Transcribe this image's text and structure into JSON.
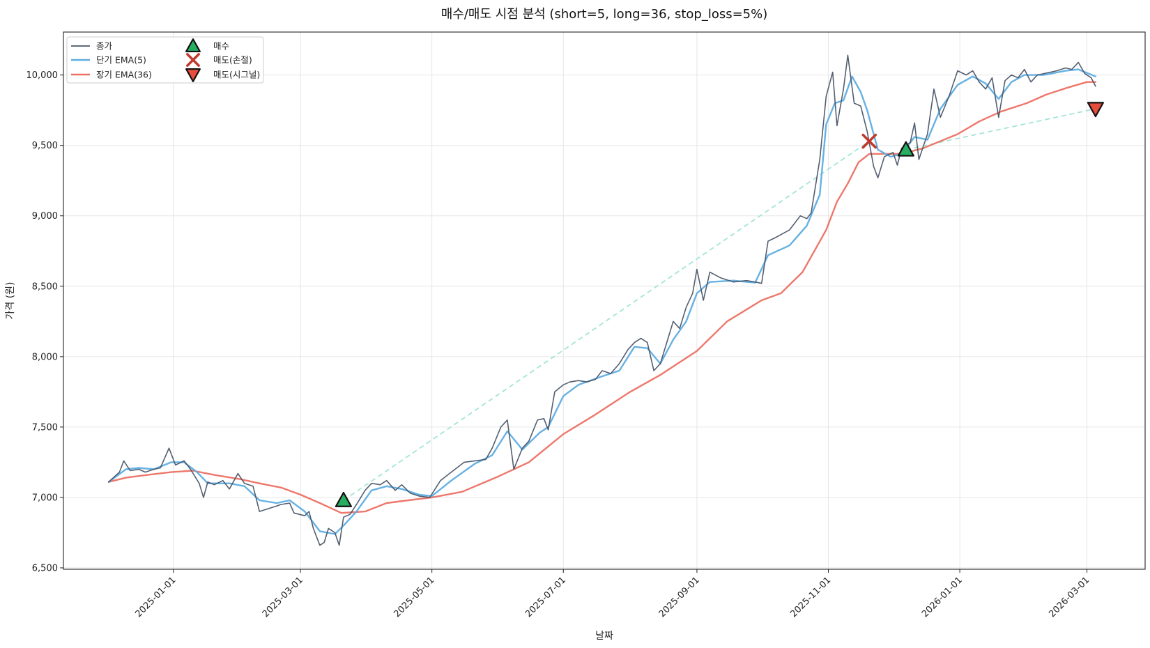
{
  "chart_data": {
    "type": "line",
    "title": "매수/매도 시점 분석 (short=5, long=36, stop_loss=5%)",
    "xlabel": "날짜",
    "ylabel": "가격 (원)",
    "xlim": [
      "2024-11-11",
      "2026-03-28"
    ],
    "ylim": [
      6490,
      10305
    ],
    "yticks": [
      6500,
      7000,
      7500,
      8000,
      8500,
      9000,
      9500,
      10000
    ],
    "ytick_labels": [
      "6,500",
      "7,000",
      "7,500",
      "8,000",
      "8,500",
      "9,000",
      "9,500",
      "10,000"
    ],
    "xticks": [
      "2025-01-01",
      "2025-03-01",
      "2025-05-01",
      "2025-07-01",
      "2025-09-01",
      "2025-11-01",
      "2026-01-01",
      "2026-03-01"
    ],
    "grid": true,
    "legend_position": "top-left",
    "series": [
      {
        "name": "종가",
        "color": "#4a5568",
        "points": [
          [
            "2024-12-02",
            7110
          ],
          [
            "2024-12-07",
            7180
          ],
          [
            "2024-12-09",
            7260
          ],
          [
            "2024-12-12",
            7190
          ],
          [
            "2024-12-16",
            7200
          ],
          [
            "2024-12-19",
            7180
          ],
          [
            "2024-12-23",
            7200
          ],
          [
            "2024-12-26",
            7210
          ],
          [
            "2024-12-30",
            7350
          ],
          [
            "2025-01-02",
            7230
          ],
          [
            "2025-01-06",
            7260
          ],
          [
            "2025-01-09",
            7200
          ],
          [
            "2025-01-13",
            7100
          ],
          [
            "2025-01-15",
            7000
          ],
          [
            "2025-01-17",
            7110
          ],
          [
            "2025-01-20",
            7090
          ],
          [
            "2025-01-24",
            7120
          ],
          [
            "2025-01-27",
            7060
          ],
          [
            "2025-01-31",
            7170
          ],
          [
            "2025-02-03",
            7100
          ],
          [
            "2025-02-07",
            7080
          ],
          [
            "2025-02-10",
            6900
          ],
          [
            "2025-02-14",
            6920
          ],
          [
            "2025-02-18",
            6940
          ],
          [
            "2025-02-20",
            6950
          ],
          [
            "2025-02-24",
            6960
          ],
          [
            "2025-02-26",
            6890
          ],
          [
            "2025-03-03",
            6870
          ],
          [
            "2025-03-05",
            6900
          ],
          [
            "2025-03-07",
            6780
          ],
          [
            "2025-03-10",
            6660
          ],
          [
            "2025-03-12",
            6680
          ],
          [
            "2025-03-14",
            6780
          ],
          [
            "2025-03-17",
            6750
          ],
          [
            "2025-03-19",
            6660
          ],
          [
            "2025-03-21",
            6860
          ],
          [
            "2025-03-24",
            6880
          ],
          [
            "2025-03-27",
            6950
          ],
          [
            "2025-03-31",
            7050
          ],
          [
            "2025-04-03",
            7100
          ],
          [
            "2025-04-07",
            7090
          ],
          [
            "2025-04-10",
            7120
          ],
          [
            "2025-04-14",
            7050
          ],
          [
            "2025-04-17",
            7090
          ],
          [
            "2025-04-21",
            7030
          ],
          [
            "2025-04-25",
            7010
          ],
          [
            "2025-04-30",
            7000
          ],
          [
            "2025-05-05",
            7120
          ],
          [
            "2025-05-10",
            7180
          ],
          [
            "2025-05-16",
            7250
          ],
          [
            "2025-05-21",
            7260
          ],
          [
            "2025-05-26",
            7270
          ],
          [
            "2025-05-29",
            7350
          ],
          [
            "2025-06-02",
            7500
          ],
          [
            "2025-06-05",
            7550
          ],
          [
            "2025-06-08",
            7200
          ],
          [
            "2025-06-12",
            7350
          ],
          [
            "2025-06-15",
            7400
          ],
          [
            "2025-06-19",
            7550
          ],
          [
            "2025-06-22",
            7560
          ],
          [
            "2025-06-24",
            7480
          ],
          [
            "2025-06-27",
            7750
          ],
          [
            "2025-07-01",
            7800
          ],
          [
            "2025-07-04",
            7820
          ],
          [
            "2025-07-08",
            7830
          ],
          [
            "2025-07-12",
            7820
          ],
          [
            "2025-07-16",
            7840
          ],
          [
            "2025-07-19",
            7900
          ],
          [
            "2025-07-23",
            7880
          ],
          [
            "2025-07-27",
            7950
          ],
          [
            "2025-07-31",
            8050
          ],
          [
            "2025-08-03",
            8100
          ],
          [
            "2025-08-06",
            8130
          ],
          [
            "2025-08-09",
            8100
          ],
          [
            "2025-08-12",
            7900
          ],
          [
            "2025-08-15",
            7950
          ],
          [
            "2025-08-18",
            8100
          ],
          [
            "2025-08-21",
            8250
          ],
          [
            "2025-08-24",
            8200
          ],
          [
            "2025-08-27",
            8350
          ],
          [
            "2025-08-30",
            8450
          ],
          [
            "2025-09-01",
            8620
          ],
          [
            "2025-09-04",
            8400
          ],
          [
            "2025-09-07",
            8600
          ],
          [
            "2025-09-12",
            8560
          ],
          [
            "2025-09-18",
            8530
          ],
          [
            "2025-09-24",
            8540
          ],
          [
            "2025-09-28",
            8530
          ],
          [
            "2025-10-01",
            8520
          ],
          [
            "2025-10-04",
            8820
          ],
          [
            "2025-10-08",
            8850
          ],
          [
            "2025-10-14",
            8900
          ],
          [
            "2025-10-19",
            9000
          ],
          [
            "2025-10-22",
            8980
          ],
          [
            "2025-10-24",
            9020
          ],
          [
            "2025-10-28",
            9400
          ],
          [
            "2025-10-31",
            9850
          ],
          [
            "2025-11-03",
            10020
          ],
          [
            "2025-11-05",
            9640
          ],
          [
            "2025-11-08",
            9900
          ],
          [
            "2025-11-10",
            10140
          ],
          [
            "2025-11-13",
            9800
          ],
          [
            "2025-11-16",
            9780
          ],
          [
            "2025-11-19",
            9600
          ],
          [
            "2025-11-22",
            9350
          ],
          [
            "2025-11-24",
            9270
          ],
          [
            "2025-11-27",
            9420
          ],
          [
            "2025-12-01",
            9450
          ],
          [
            "2025-12-03",
            9360
          ],
          [
            "2025-12-05",
            9480
          ],
          [
            "2025-12-09",
            9520
          ],
          [
            "2025-12-11",
            9660
          ],
          [
            "2025-12-13",
            9400
          ],
          [
            "2025-12-17",
            9580
          ],
          [
            "2025-12-20",
            9900
          ],
          [
            "2025-12-23",
            9700
          ],
          [
            "2025-12-27",
            9850
          ],
          [
            "2025-12-31",
            10030
          ],
          [
            "2026-01-04",
            10000
          ],
          [
            "2026-01-07",
            10030
          ],
          [
            "2026-01-10",
            9950
          ],
          [
            "2026-01-13",
            9900
          ],
          [
            "2026-01-16",
            9980
          ],
          [
            "2026-01-19",
            9700
          ],
          [
            "2026-01-22",
            9960
          ],
          [
            "2026-01-25",
            10000
          ],
          [
            "2026-01-28",
            9980
          ],
          [
            "2026-01-31",
            10040
          ],
          [
            "2026-02-03",
            9950
          ],
          [
            "2026-02-06",
            10000
          ],
          [
            "2026-02-09",
            10010
          ],
          [
            "2026-02-12",
            10020
          ],
          [
            "2026-02-15",
            10030
          ],
          [
            "2026-02-19",
            10050
          ],
          [
            "2026-02-22",
            10040
          ],
          [
            "2026-02-25",
            10090
          ],
          [
            "2026-02-28",
            10010
          ],
          [
            "2026-03-03",
            9980
          ],
          [
            "2026-03-05",
            9920
          ]
        ]
      },
      {
        "name": "단기 EMA(5)",
        "color": "#5dade2",
        "points": [
          [
            "2024-12-02",
            7110
          ],
          [
            "2024-12-10",
            7200
          ],
          [
            "2024-12-16",
            7210
          ],
          [
            "2024-12-23",
            7200
          ],
          [
            "2024-12-31",
            7250
          ],
          [
            "2025-01-06",
            7250
          ],
          [
            "2025-01-12",
            7180
          ],
          [
            "2025-01-17",
            7100
          ],
          [
            "2025-01-27",
            7100
          ],
          [
            "2025-02-03",
            7080
          ],
          [
            "2025-02-10",
            6980
          ],
          [
            "2025-02-18",
            6960
          ],
          [
            "2025-02-24",
            6980
          ],
          [
            "2025-03-03",
            6900
          ],
          [
            "2025-03-10",
            6760
          ],
          [
            "2025-03-17",
            6740
          ],
          [
            "2025-03-21",
            6800
          ],
          [
            "2025-03-27",
            6900
          ],
          [
            "2025-04-03",
            7050
          ],
          [
            "2025-04-10",
            7080
          ],
          [
            "2025-04-17",
            7060
          ],
          [
            "2025-04-25",
            7020
          ],
          [
            "2025-05-01",
            7010
          ],
          [
            "2025-05-10",
            7120
          ],
          [
            "2025-05-21",
            7240
          ],
          [
            "2025-05-29",
            7300
          ],
          [
            "2025-06-05",
            7470
          ],
          [
            "2025-06-12",
            7340
          ],
          [
            "2025-06-20",
            7460
          ],
          [
            "2025-06-24",
            7500
          ],
          [
            "2025-07-01",
            7720
          ],
          [
            "2025-07-08",
            7800
          ],
          [
            "2025-07-19",
            7860
          ],
          [
            "2025-07-27",
            7900
          ],
          [
            "2025-08-03",
            8070
          ],
          [
            "2025-08-09",
            8060
          ],
          [
            "2025-08-15",
            7950
          ],
          [
            "2025-08-21",
            8120
          ],
          [
            "2025-08-27",
            8250
          ],
          [
            "2025-09-01",
            8450
          ],
          [
            "2025-09-07",
            8530
          ],
          [
            "2025-09-18",
            8540
          ],
          [
            "2025-09-28",
            8525
          ],
          [
            "2025-10-04",
            8720
          ],
          [
            "2025-10-14",
            8790
          ],
          [
            "2025-10-22",
            8930
          ],
          [
            "2025-10-28",
            9150
          ],
          [
            "2025-10-31",
            9650
          ],
          [
            "2025-11-04",
            9800
          ],
          [
            "2025-11-08",
            9820
          ],
          [
            "2025-11-12",
            9990
          ],
          [
            "2025-11-16",
            9880
          ],
          [
            "2025-11-19",
            9750
          ],
          [
            "2025-11-24",
            9470
          ],
          [
            "2025-11-30",
            9420
          ],
          [
            "2025-12-05",
            9440
          ],
          [
            "2025-12-11",
            9560
          ],
          [
            "2025-12-17",
            9540
          ],
          [
            "2025-12-23",
            9760
          ],
          [
            "2025-12-31",
            9930
          ],
          [
            "2026-01-07",
            9990
          ],
          [
            "2026-01-13",
            9940
          ],
          [
            "2026-01-19",
            9830
          ],
          [
            "2026-01-25",
            9950
          ],
          [
            "2026-01-31",
            10000
          ],
          [
            "2026-02-09",
            10000
          ],
          [
            "2026-02-19",
            10030
          ],
          [
            "2026-02-25",
            10040
          ],
          [
            "2026-03-05",
            9990
          ]
        ]
      },
      {
        "name": "장기 EMA(36)",
        "color": "#ec7063",
        "points": [
          [
            "2024-12-02",
            7110
          ],
          [
            "2024-12-10",
            7140
          ],
          [
            "2024-12-20",
            7160
          ],
          [
            "2024-12-31",
            7180
          ],
          [
            "2025-01-10",
            7190
          ],
          [
            "2025-01-20",
            7160
          ],
          [
            "2025-02-01",
            7130
          ],
          [
            "2025-02-10",
            7100
          ],
          [
            "2025-02-20",
            7070
          ],
          [
            "2025-03-01",
            7020
          ],
          [
            "2025-03-10",
            6960
          ],
          [
            "2025-03-20",
            6890
          ],
          [
            "2025-03-31",
            6900
          ],
          [
            "2025-04-10",
            6960
          ],
          [
            "2025-04-20",
            6980
          ],
          [
            "2025-05-01",
            7000
          ],
          [
            "2025-05-15",
            7040
          ],
          [
            "2025-06-01",
            7150
          ],
          [
            "2025-06-15",
            7250
          ],
          [
            "2025-07-01",
            7450
          ],
          [
            "2025-07-15",
            7580
          ],
          [
            "2025-08-01",
            7750
          ],
          [
            "2025-08-15",
            7870
          ],
          [
            "2025-09-01",
            8040
          ],
          [
            "2025-09-15",
            8250
          ],
          [
            "2025-10-01",
            8400
          ],
          [
            "2025-10-10",
            8450
          ],
          [
            "2025-10-20",
            8600
          ],
          [
            "2025-10-31",
            8900
          ],
          [
            "2025-11-05",
            9100
          ],
          [
            "2025-11-10",
            9230
          ],
          [
            "2025-11-15",
            9380
          ],
          [
            "2025-11-20",
            9440
          ],
          [
            "2025-11-25",
            9440
          ],
          [
            "2025-12-05",
            9440
          ],
          [
            "2025-12-15",
            9480
          ],
          [
            "2025-12-31",
            9580
          ],
          [
            "2026-01-10",
            9670
          ],
          [
            "2026-01-20",
            9740
          ],
          [
            "2026-02-01",
            9800
          ],
          [
            "2026-02-10",
            9860
          ],
          [
            "2026-02-20",
            9910
          ],
          [
            "2026-03-01",
            9950
          ],
          [
            "2026-03-05",
            9950
          ]
        ]
      }
    ],
    "trade_links": [
      {
        "from": [
          "2025-03-21",
          6980
        ],
        "to": [
          "2025-11-20",
          9530
        ]
      },
      {
        "from": [
          "2025-12-07",
          9470
        ],
        "to": [
          "2026-03-05",
          9760
        ]
      }
    ],
    "markers": [
      {
        "type": "buy",
        "label": "매수",
        "date": "2025-03-21",
        "price": 6980,
        "color": "#27ae60"
      },
      {
        "type": "stop_loss",
        "label": "매도(손절)",
        "date": "2025-11-20",
        "price": 9530,
        "color": "#c0392b"
      },
      {
        "type": "buy",
        "label": "매수",
        "date": "2025-12-07",
        "price": 9470,
        "color": "#27ae60"
      },
      {
        "type": "signal_sell",
        "label": "매도(시그널)",
        "date": "2026-03-05",
        "price": 9760,
        "color": "#e74c3c"
      }
    ],
    "legend": [
      "종가",
      "단기 EMA(5)",
      "장기 EMA(36)",
      "매수",
      "매도(손절)",
      "매도(시그널)"
    ]
  }
}
